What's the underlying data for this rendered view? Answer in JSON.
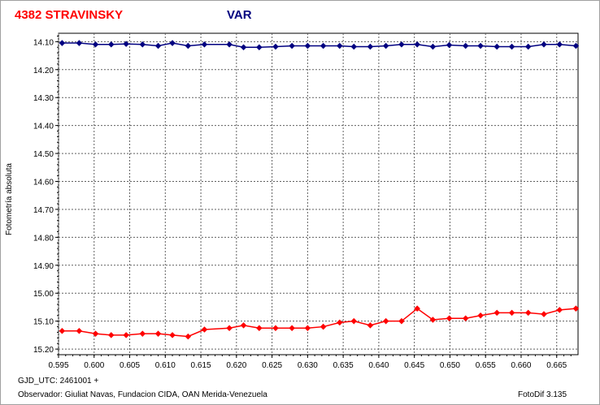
{
  "header": {
    "object_name": "4382 STRAVINSKY",
    "series_label": "VAR"
  },
  "footer": {
    "gjd": "GJD_UTC: 2461001 +",
    "observer": "Observador: Giuliat Navas, Fundacion CIDA, OAN  Merida-Venezuela",
    "version": "FotoDif 3.135"
  },
  "colors": {
    "var_series": "#ff0000",
    "comp_series": "#000080",
    "grid": "#606060"
  },
  "chart_data": {
    "type": "line",
    "title": "4382 STRAVINSKY",
    "xlabel": "",
    "ylabel": "Fotometría absoluta",
    "xlim": [
      0.595,
      0.668
    ],
    "ylim": [
      15.22,
      14.07
    ],
    "y_inverted": true,
    "grid": true,
    "x_ticks": [
      "0.595",
      "0.600",
      "0.605",
      "0.610",
      "0.615",
      "0.620",
      "0.625",
      "0.630",
      "0.635",
      "0.640",
      "0.645",
      "0.650",
      "0.655",
      "0.660",
      "0.665"
    ],
    "y_ticks": [
      "14.10",
      "14.20",
      "14.30",
      "14.40",
      "14.50",
      "14.60",
      "14.70",
      "14.80",
      "14.90",
      "15.00",
      "15.10",
      "15.20"
    ],
    "series": [
      {
        "name": "VAR",
        "color": "#ff0000",
        "x": [
          0.5955,
          0.5979,
          0.6002,
          0.6024,
          0.6045,
          0.6068,
          0.609,
          0.611,
          0.6132,
          0.6155,
          0.619,
          0.621,
          0.6232,
          0.6255,
          0.6278,
          0.63,
          0.6322,
          0.6345,
          0.6365,
          0.6388,
          0.641,
          0.6432,
          0.6454,
          0.6476,
          0.6499,
          0.6522,
          0.6543,
          0.6566,
          0.6587,
          0.661,
          0.6632,
          0.6654,
          0.6677
        ],
        "values": [
          15.135,
          15.135,
          15.145,
          15.15,
          15.15,
          15.145,
          15.145,
          15.15,
          15.155,
          15.13,
          15.125,
          15.115,
          15.125,
          15.125,
          15.125,
          15.125,
          15.12,
          15.105,
          15.1,
          15.115,
          15.1,
          15.1,
          15.055,
          15.095,
          15.09,
          15.09,
          15.08,
          15.07,
          15.07,
          15.07,
          15.075,
          15.06,
          15.055
        ]
      },
      {
        "name": "",
        "color": "#000080",
        "x": [
          0.5955,
          0.5979,
          0.6002,
          0.6024,
          0.6045,
          0.6068,
          0.609,
          0.611,
          0.6132,
          0.6155,
          0.619,
          0.621,
          0.6232,
          0.6255,
          0.6278,
          0.63,
          0.6322,
          0.6345,
          0.6365,
          0.6388,
          0.641,
          0.6432,
          0.6454,
          0.6476,
          0.6499,
          0.6522,
          0.6543,
          0.6566,
          0.6587,
          0.661,
          0.6632,
          0.6654,
          0.6677
        ],
        "values": [
          14.105,
          14.105,
          14.11,
          14.11,
          14.108,
          14.11,
          14.115,
          14.105,
          14.115,
          14.11,
          14.11,
          14.12,
          14.12,
          14.118,
          14.115,
          14.115,
          14.115,
          14.115,
          14.118,
          14.118,
          14.115,
          14.11,
          14.11,
          14.118,
          14.112,
          14.115,
          14.115,
          14.118,
          14.118,
          14.118,
          14.11,
          14.11,
          14.115
        ]
      }
    ]
  }
}
